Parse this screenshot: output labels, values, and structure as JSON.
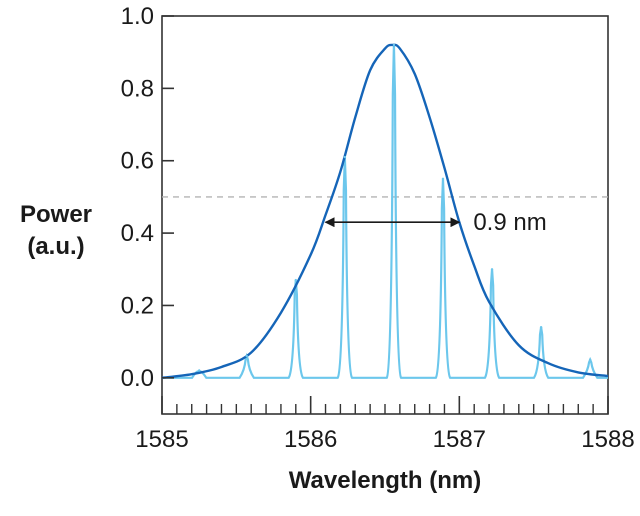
{
  "chart_data": {
    "type": "line",
    "title": "",
    "xlabel": "Wavelength (nm)",
    "ylabel": "Power\n(a.u.)",
    "ylabel_lines": [
      "Power",
      "(a.u.)"
    ],
    "xlim": [
      1585,
      1588
    ],
    "ylim": [
      -0.1,
      1.0
    ],
    "x_ticks": [
      1585,
      1586,
      1587,
      1588
    ],
    "x_tick_labels": [
      "1585",
      "1586",
      "1587",
      "1588"
    ],
    "x_minor_step": 0.1,
    "y_ticks": [
      0.0,
      0.2,
      0.4,
      0.6,
      0.8,
      1.0
    ],
    "y_tick_labels": [
      "0.0",
      "0.2",
      "0.4",
      "0.6",
      "0.8",
      "1.0"
    ],
    "grid": false,
    "series": [
      {
        "style": "envelope",
        "color": "#1565b8",
        "peak": {
          "x": 1586.55,
          "y": 0.92
        },
        "x": [
          1585.0,
          1585.2,
          1585.4,
          1585.6,
          1585.8,
          1586.0,
          1586.1,
          1586.2,
          1586.3,
          1586.4,
          1586.5,
          1586.55,
          1586.6,
          1586.7,
          1586.8,
          1586.9,
          1587.0,
          1587.1,
          1587.2,
          1587.4,
          1587.6,
          1587.8,
          1588.0
        ],
        "y": [
          0.0,
          0.01,
          0.03,
          0.07,
          0.18,
          0.34,
          0.45,
          0.57,
          0.72,
          0.85,
          0.91,
          0.92,
          0.91,
          0.84,
          0.72,
          0.58,
          0.43,
          0.31,
          0.21,
          0.09,
          0.04,
          0.015,
          0.005
        ]
      },
      {
        "style": "comb",
        "color": "#6cc7ec",
        "baseline": 0.0,
        "peak_halfwidth_nm": 0.03,
        "peaks_x": [
          1585.25,
          1585.57,
          1585.9,
          1586.23,
          1586.56,
          1586.89,
          1587.22,
          1587.55,
          1587.88
        ],
        "peaks_y": [
          0.02,
          0.06,
          0.27,
          0.61,
          0.92,
          0.55,
          0.3,
          0.14,
          0.05
        ]
      }
    ],
    "reference_line": {
      "y": 0.5,
      "style": "dashed",
      "color": "#b3b3b3"
    },
    "annotations": [
      {
        "text": "0.9 nm",
        "type": "double-arrow",
        "x_from": 1586.1,
        "x_to": 1587.0,
        "y": 0.43
      }
    ]
  }
}
